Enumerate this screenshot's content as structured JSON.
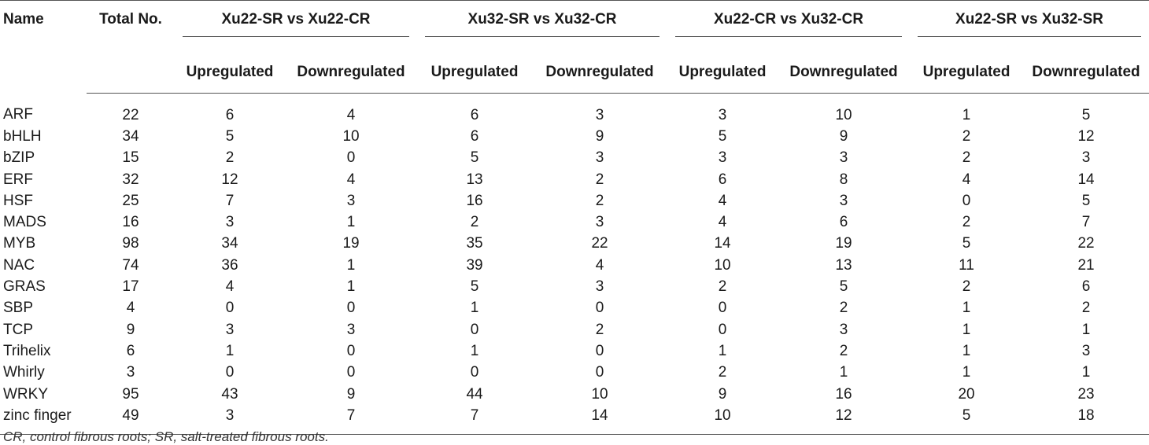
{
  "table": {
    "headers": {
      "name": "Name",
      "total": "Total No.",
      "groups": [
        "Xu22-SR vs Xu22-CR",
        "Xu32-SR vs Xu32-CR",
        "Xu22-CR vs Xu32-CR",
        "Xu22-SR vs Xu32-SR"
      ],
      "up": "Upregulated",
      "down": "Downregulated"
    },
    "rows": [
      [
        "ARF",
        "22",
        "6",
        "4",
        "6",
        "3",
        "3",
        "10",
        "1",
        "5"
      ],
      [
        "bHLH",
        "34",
        "5",
        "10",
        "6",
        "9",
        "5",
        "9",
        "2",
        "12"
      ],
      [
        "bZIP",
        "15",
        "2",
        "0",
        "5",
        "3",
        "3",
        "3",
        "2",
        "3"
      ],
      [
        "ERF",
        "32",
        "12",
        "4",
        "13",
        "2",
        "6",
        "8",
        "4",
        "14"
      ],
      [
        "HSF",
        "25",
        "7",
        "3",
        "16",
        "2",
        "4",
        "3",
        "0",
        "5"
      ],
      [
        "MADS",
        "16",
        "3",
        "1",
        "2",
        "3",
        "4",
        "6",
        "2",
        "7"
      ],
      [
        "MYB",
        "98",
        "34",
        "19",
        "35",
        "22",
        "14",
        "19",
        "5",
        "22"
      ],
      [
        "NAC",
        "74",
        "36",
        "1",
        "39",
        "4",
        "10",
        "13",
        "11",
        "21"
      ],
      [
        "GRAS",
        "17",
        "4",
        "1",
        "5",
        "3",
        "2",
        "5",
        "2",
        "6"
      ],
      [
        "SBP",
        "4",
        "0",
        "0",
        "1",
        "0",
        "0",
        "2",
        "1",
        "2"
      ],
      [
        "TCP",
        "9",
        "3",
        "3",
        "0",
        "2",
        "0",
        "3",
        "1",
        "1"
      ],
      [
        "Trihelix",
        "6",
        "1",
        "0",
        "1",
        "0",
        "1",
        "2",
        "1",
        "3"
      ],
      [
        "Whirly",
        "3",
        "0",
        "0",
        "0",
        "0",
        "2",
        "1",
        "1",
        "1"
      ],
      [
        "WRKY",
        "95",
        "43",
        "9",
        "44",
        "10",
        "9",
        "16",
        "20",
        "23"
      ],
      [
        "zinc finger",
        "49",
        "3",
        "7",
        "7",
        "14",
        "10",
        "12",
        "5",
        "18"
      ]
    ]
  },
  "footnote": "CR, control fibrous roots; SR, salt-treated fibrous roots."
}
